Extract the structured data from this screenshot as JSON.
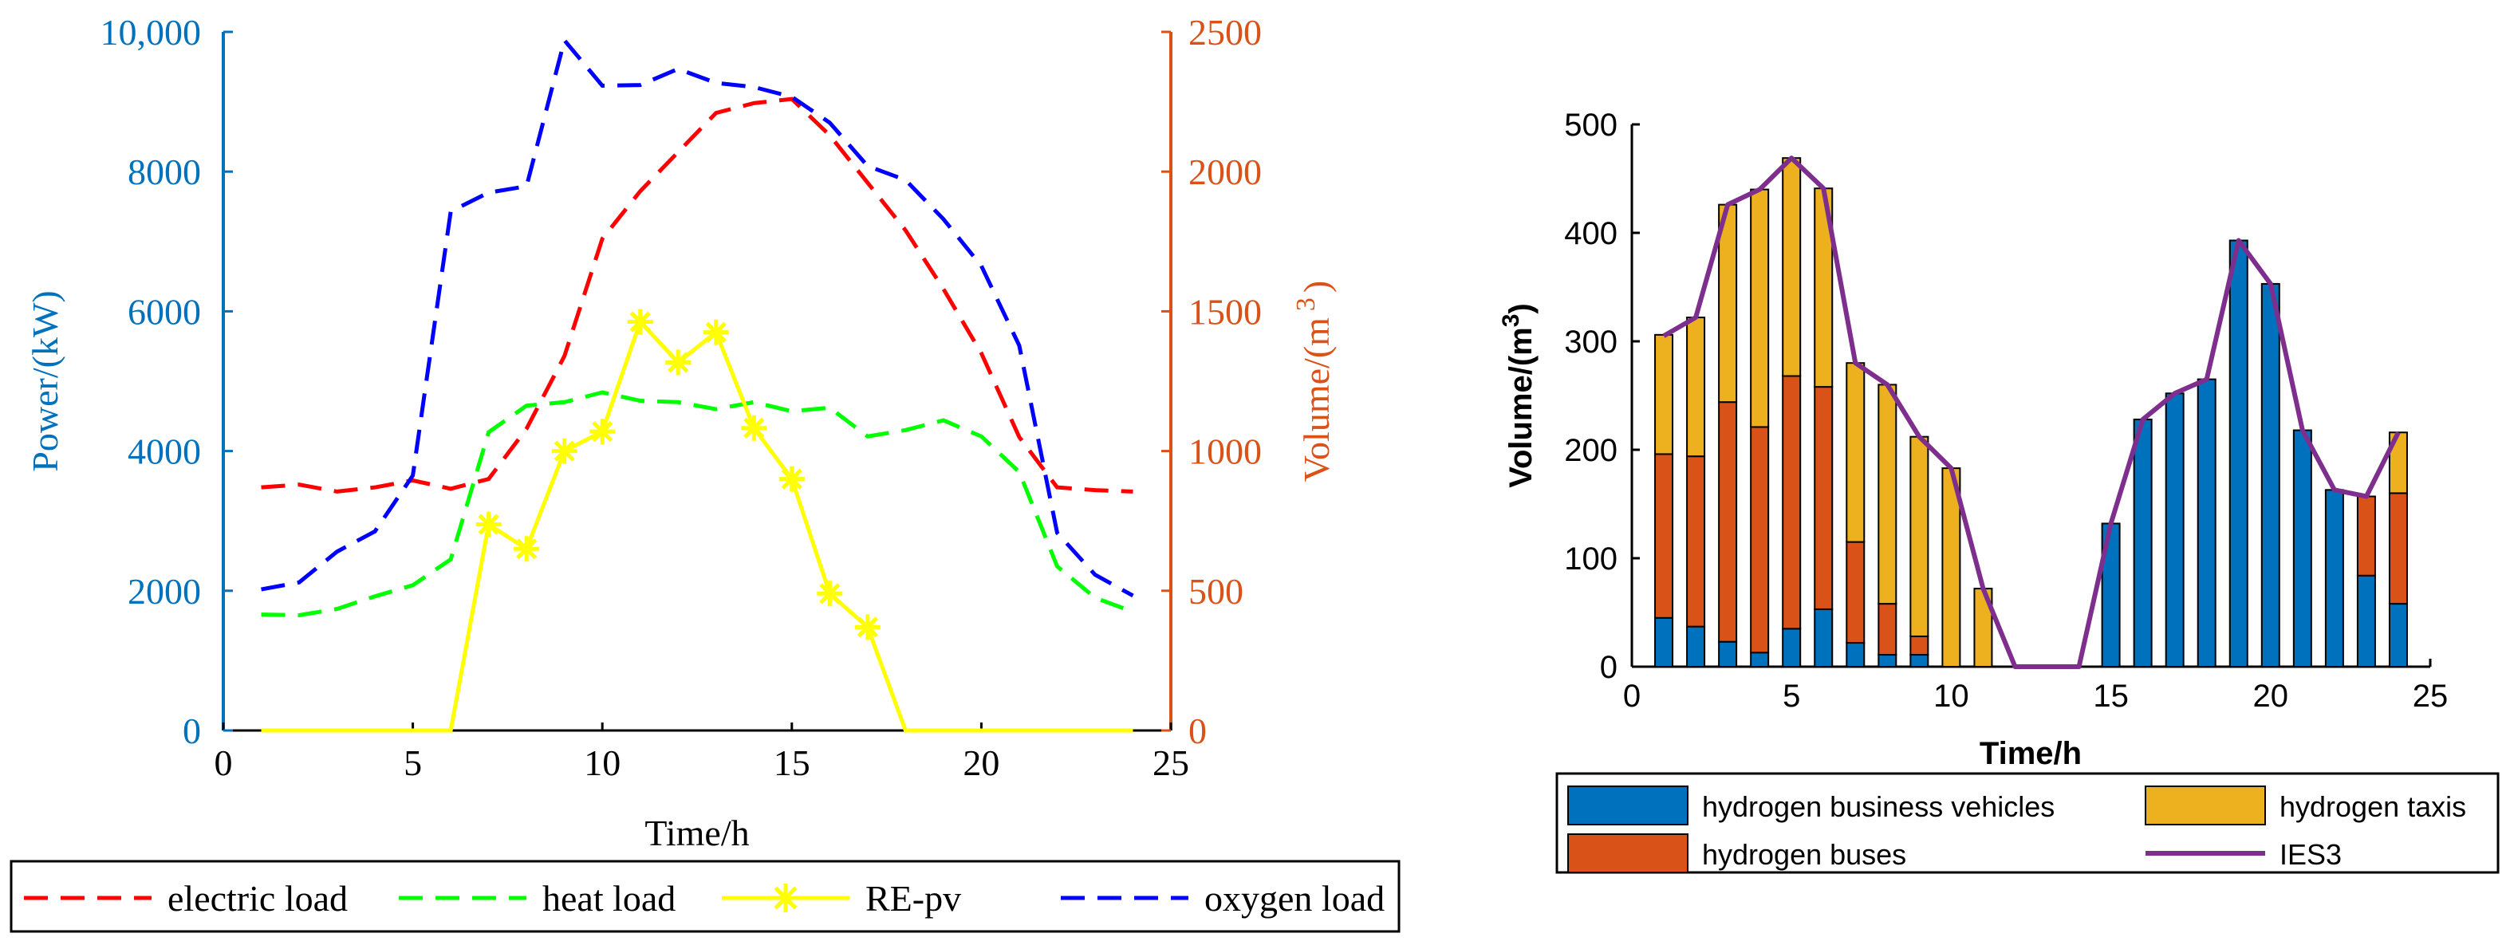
{
  "colors": {
    "left_axis": "#0072BD",
    "right_axis": "#D95319",
    "electric": "#FF0000",
    "heat": "#00FF00",
    "pv": "#FFFF00",
    "oxygen": "#0000FF",
    "bar_business": "#0072BD",
    "bar_buses": "#D95319",
    "bar_taxis": "#EDB120",
    "ies3": "#7E2F8E"
  },
  "chart_data": [
    {
      "type": "line",
      "title": "",
      "xlabel": "Time/h",
      "ylabel_left": "Power/(kW)",
      "ylabel_right_prefix": "Volume/(m",
      "ylabel_right_sup": "3",
      "ylabel_right_suffix": ")",
      "xlim": [
        0,
        25
      ],
      "ylim_left": [
        0,
        10000
      ],
      "ylim_right": [
        0,
        2500
      ],
      "xticks": [
        "0",
        "5",
        "10",
        "15",
        "20",
        "25"
      ],
      "yticks_left": [
        "0",
        "2000",
        "4000",
        "6000",
        "8000",
        "10,000"
      ],
      "yticks_right": [
        "0",
        "500",
        "1000",
        "1500",
        "2000",
        "2500"
      ],
      "x": [
        1,
        2,
        3,
        4,
        5,
        6,
        7,
        8,
        9,
        10,
        11,
        12,
        13,
        14,
        15,
        16,
        17,
        18,
        19,
        20,
        21,
        22,
        23,
        24
      ],
      "series": [
        {
          "name": "electric load",
          "axis": "right",
          "style": "dashed",
          "values": [
            870,
            880,
            855,
            870,
            895,
            865,
            900,
            1080,
            1340,
            1760,
            1930,
            2070,
            2210,
            2245,
            2260,
            2130,
            1960,
            1790,
            1580,
            1350,
            1050,
            870,
            860,
            855
          ]
        },
        {
          "name": "heat load",
          "axis": "left",
          "style": "dashed",
          "values": [
            1660,
            1650,
            1740,
            1920,
            2080,
            2450,
            4270,
            4650,
            4700,
            4840,
            4720,
            4700,
            4600,
            4700,
            4570,
            4620,
            4210,
            4300,
            4440,
            4210,
            3700,
            2350,
            1900,
            1700
          ]
        },
        {
          "name": "RE-pv",
          "axis": "left",
          "style": "solid-star",
          "values": [
            0,
            0,
            0,
            0,
            0,
            0,
            2950,
            2600,
            4000,
            4280,
            5850,
            5270,
            5700,
            4330,
            3600,
            1960,
            1480,
            0,
            0,
            0,
            0,
            0,
            0,
            0
          ]
        },
        {
          "name": "oxygen load",
          "axis": "left",
          "style": "dashed",
          "values": [
            2020,
            2120,
            2560,
            2850,
            3650,
            7430,
            7700,
            7790,
            9880,
            9230,
            9240,
            9470,
            9270,
            9210,
            9070,
            8700,
            8080,
            7880,
            7320,
            6650,
            5510,
            2830,
            2230,
            1930
          ]
        }
      ],
      "legend": {
        "placement": "bottom",
        "entries": [
          "electric load",
          "heat load",
          "RE-pv",
          "oxygen load"
        ]
      }
    },
    {
      "type": "bar",
      "stacked": true,
      "title": "",
      "xlabel": "Time/h",
      "ylabel_prefix": "Volume/(m",
      "ylabel_sup": "3",
      "ylabel_suffix": ")",
      "xlim": [
        0,
        25
      ],
      "ylim": [
        0,
        500
      ],
      "xticks": [
        "0",
        "5",
        "10",
        "15",
        "20",
        "25"
      ],
      "yticks": [
        "0",
        "100",
        "200",
        "300",
        "400",
        "500"
      ],
      "x": [
        1,
        2,
        3,
        4,
        5,
        6,
        7,
        8,
        9,
        10,
        11,
        12,
        13,
        14,
        15,
        16,
        17,
        18,
        19,
        20,
        21,
        22,
        23,
        24
      ],
      "series": [
        {
          "name": "hydrogen business vehicles",
          "values": [
            45,
            37,
            23,
            13,
            35,
            53,
            22,
            11,
            11,
            0,
            0,
            0,
            0,
            0,
            132,
            228,
            252,
            265,
            393,
            353,
            218,
            163,
            84,
            58
          ]
        },
        {
          "name": "hydrogen buses",
          "values": [
            151,
            157,
            221,
            208,
            233,
            205,
            93,
            47,
            17,
            0,
            0,
            0,
            0,
            0,
            0,
            0,
            0,
            0,
            0,
            0,
            0,
            0,
            73,
            102
          ]
        },
        {
          "name": "hydrogen taxis",
          "values": [
            110,
            128,
            182,
            219,
            201,
            183,
            165,
            202,
            184,
            183,
            72,
            0,
            0,
            0,
            0,
            0,
            0,
            0,
            0,
            0,
            0,
            0,
            0,
            56
          ]
        }
      ],
      "line": {
        "name": "IES3",
        "values": [
          305,
          322,
          426,
          440,
          469,
          441,
          280,
          260,
          212,
          183,
          72,
          0,
          0,
          0,
          132,
          228,
          252,
          265,
          393,
          353,
          218,
          163,
          157,
          216
        ]
      },
      "legend": {
        "placement": "bottom",
        "entries": [
          "hydrogen business vehicles",
          "hydrogen taxis",
          "hydrogen buses",
          "IES3"
        ]
      }
    }
  ]
}
